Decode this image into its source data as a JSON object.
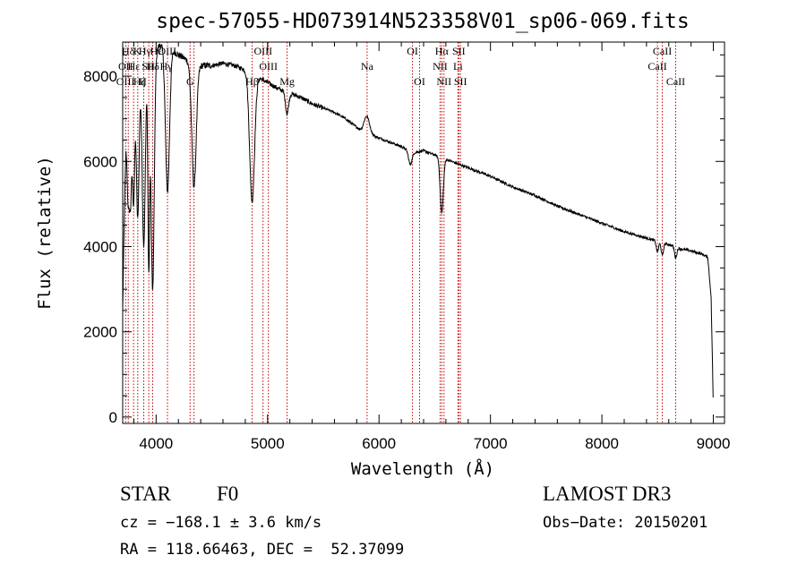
{
  "chart_data": {
    "type": "line",
    "title": "spec-57055-HD073914N523358V01_sp06-069.fits",
    "xlabel": "Wavelength (Å)",
    "ylabel": "Flux (relative)",
    "xlim": [
      3700,
      9100
    ],
    "ylim": [
      -150,
      8800
    ],
    "xticks": [
      4000,
      5000,
      6000,
      7000,
      8000,
      9000
    ],
    "yticks": [
      0,
      2000,
      4000,
      6000,
      8000
    ],
    "xtick_labels": [
      "4000",
      "5000",
      "6000",
      "7000",
      "8000",
      "9000"
    ],
    "ytick_labels": [
      "0",
      "2000",
      "4000",
      "6000",
      "8000"
    ],
    "continuum": [
      {
        "w": 3700,
        "f": 2500
      },
      {
        "w": 3715,
        "f": 4800
      },
      {
        "w": 3730,
        "f": 6500
      },
      {
        "w": 3750,
        "f": 7400
      },
      {
        "w": 3800,
        "f": 7900
      },
      {
        "w": 3850,
        "f": 8100
      },
      {
        "w": 3900,
        "f": 8300
      },
      {
        "w": 3950,
        "f": 8500
      },
      {
        "w": 4000,
        "f": 8650
      },
      {
        "w": 4050,
        "f": 8750
      },
      {
        "w": 4100,
        "f": 8700
      },
      {
        "w": 4150,
        "f": 8600
      },
      {
        "w": 4200,
        "f": 8500
      },
      {
        "w": 4300,
        "f": 8350
      },
      {
        "w": 4400,
        "f": 8250
      },
      {
        "w": 4500,
        "f": 8250
      },
      {
        "w": 4600,
        "f": 8300
      },
      {
        "w": 4700,
        "f": 8250
      },
      {
        "w": 4800,
        "f": 8150
      },
      {
        "w": 4900,
        "f": 8000
      },
      {
        "w": 5000,
        "f": 7850
      },
      {
        "w": 5100,
        "f": 7700
      },
      {
        "w": 5200,
        "f": 7600
      },
      {
        "w": 5300,
        "f": 7500
      },
      {
        "w": 5400,
        "f": 7350
      },
      {
        "w": 5500,
        "f": 7250
      },
      {
        "w": 5600,
        "f": 7150
      },
      {
        "w": 5700,
        "f": 7000
      },
      {
        "w": 5800,
        "f": 6800
      },
      {
        "w": 5850,
        "f": 6700
      },
      {
        "w": 6000,
        "f": 6550
      },
      {
        "w": 6100,
        "f": 6450
      },
      {
        "w": 6200,
        "f": 6350
      },
      {
        "w": 6300,
        "f": 6200
      },
      {
        "w": 6400,
        "f": 6250
      },
      {
        "w": 6500,
        "f": 6150
      },
      {
        "w": 6600,
        "f": 6050
      },
      {
        "w": 6700,
        "f": 5950
      },
      {
        "w": 6800,
        "f": 5850
      },
      {
        "w": 7000,
        "f": 5650
      },
      {
        "w": 7200,
        "f": 5400
      },
      {
        "w": 7400,
        "f": 5200
      },
      {
        "w": 7600,
        "f": 4950
      },
      {
        "w": 7800,
        "f": 4750
      },
      {
        "w": 8000,
        "f": 4550
      },
      {
        "w": 8200,
        "f": 4350
      },
      {
        "w": 8400,
        "f": 4200
      },
      {
        "w": 8600,
        "f": 4050
      },
      {
        "w": 8700,
        "f": 3950
      },
      {
        "w": 8800,
        "f": 3900
      },
      {
        "w": 8900,
        "f": 3820
      },
      {
        "w": 8950,
        "f": 3750
      },
      {
        "w": 8980,
        "f": 2800
      },
      {
        "w": 9000,
        "f": 200
      }
    ],
    "features": [
      {
        "w": 3750,
        "depth": 2200,
        "width": 10
      },
      {
        "w": 3771,
        "depth": 2400,
        "width": 10
      },
      {
        "w": 3798,
        "depth": 2800,
        "width": 10
      },
      {
        "w": 3835,
        "depth": 3400,
        "width": 12
      },
      {
        "w": 3889,
        "depth": 4200,
        "width": 14
      },
      {
        "w": 3934,
        "depth": 4800,
        "width": 8
      },
      {
        "w": 3969,
        "depth": 5600,
        "width": 14
      },
      {
        "w": 4102,
        "depth": 3400,
        "width": 18
      },
      {
        "w": 4340,
        "depth": 2900,
        "width": 20
      },
      {
        "w": 4861,
        "depth": 3000,
        "width": 22
      },
      {
        "w": 5175,
        "depth": 500,
        "width": 14
      },
      {
        "w": 5890,
        "depth": -400,
        "width": 25
      },
      {
        "w": 6280,
        "depth": 300,
        "width": 15
      },
      {
        "w": 6563,
        "depth": 1300,
        "width": 14
      },
      {
        "w": 8498,
        "depth": 250,
        "width": 10
      },
      {
        "w": 8542,
        "depth": 300,
        "width": 10
      },
      {
        "w": 8662,
        "depth": 250,
        "width": 10
      }
    ],
    "lines": [
      {
        "label": "Hδ",
        "w": 3750,
        "row": 0
      },
      {
        "label": "OII",
        "w": 3727,
        "row": 1
      },
      {
        "label": "OIII",
        "w": 3725,
        "row": 2
      },
      {
        "label": "Hε",
        "w": 3800,
        "row": 1
      },
      {
        "label": "K",
        "w": 3830,
        "row": 0
      },
      {
        "label": "Hζ",
        "w": 3850,
        "row": 2
      },
      {
        "label": "H",
        "w": 3880,
        "row": 2
      },
      {
        "label": "Hγ",
        "w": 3900,
        "row": 0
      },
      {
        "label": "SII",
        "w": 3930,
        "row": 1
      },
      {
        "label": "Hδ",
        "w": 3970,
        "row": 1
      },
      {
        "label": "Hε",
        "w": 4000,
        "row": 0
      },
      {
        "label": "OIII",
        "w": 4100,
        "row": 0
      },
      {
        "label": "Hγ",
        "w": 4090,
        "row": 1
      },
      {
        "label": "G",
        "w": 4305,
        "row": 2
      },
      {
        "label": "OIII",
        "w": 4960,
        "row": 0
      },
      {
        "label": "OIII",
        "w": 5007,
        "row": 1
      },
      {
        "label": "Hβ",
        "w": 4861,
        "row": 2
      },
      {
        "label": "Mg",
        "w": 5175,
        "row": 2
      },
      {
        "label": "Na",
        "w": 5893,
        "row": 1
      },
      {
        "label": "OI",
        "w": 6300,
        "row": 0
      },
      {
        "label": "OI",
        "w": 6364,
        "row": 2
      },
      {
        "label": "Hα",
        "w": 6563,
        "row": 0
      },
      {
        "label": "NII",
        "w": 6548,
        "row": 1
      },
      {
        "label": "NII",
        "w": 6583,
        "row": 2
      },
      {
        "label": "SII",
        "w": 6716,
        "row": 0
      },
      {
        "label": "Li",
        "w": 6708,
        "row": 1
      },
      {
        "label": "SII",
        "w": 6731,
        "row": 2
      },
      {
        "label": "CaII",
        "w": 8498,
        "row": 1
      },
      {
        "label": "CaII",
        "w": 8542,
        "row": 0
      },
      {
        "label": "CaII",
        "w": 8662,
        "row": 2
      }
    ],
    "line_marker_wavelengths": [
      3727,
      3750,
      3798,
      3835,
      3889,
      3934,
      3969,
      4102,
      4305,
      4340,
      4861,
      4959,
      5007,
      5175,
      5893,
      6300,
      6364,
      6548,
      6563,
      6583,
      6708,
      6716,
      6731,
      8498,
      8542,
      8662
    ]
  },
  "info": {
    "object_type": "STAR",
    "subclass": "F0",
    "survey": "LAMOST DR3",
    "redshift_line": "cz = −168.1 ± 3.6 km/s",
    "obs_date": "Obs−Date: 20150201",
    "coords": "RA = 118.66463, DEC =  52.37099"
  },
  "colors": {
    "spectrum": "#000000",
    "line_marker": "#c00000",
    "axes": "#000000",
    "background": "#ffffff"
  }
}
